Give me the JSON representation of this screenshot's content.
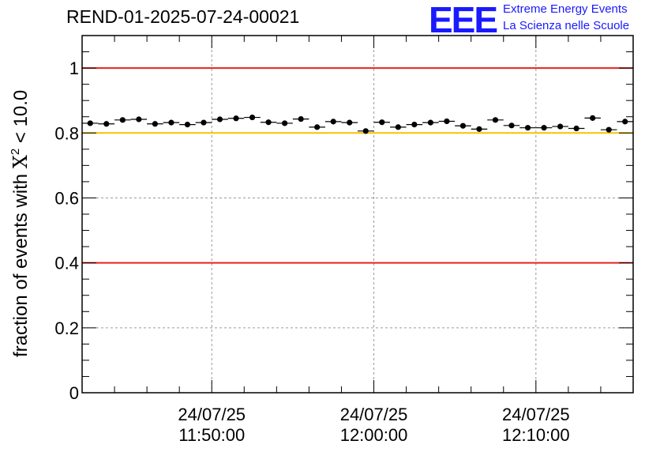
{
  "header": {
    "run_title": "REND-01-2025-07-24-00021",
    "logo_mark": "EEE",
    "logo_line1": "Extreme Energy Events",
    "logo_line2": "La Scienza nelle Scuole"
  },
  "colors": {
    "limit_line": "#e8231c",
    "reference_line": "#f5c400",
    "logo": "#1a1aff",
    "markers": "#000000"
  },
  "chart_data": {
    "type": "scatter",
    "title": "REND-01-2025-07-24-00021",
    "xlabel": "",
    "ylabel_prefix": "fraction of events with ",
    "ylabel_symbol": "X",
    "ylabel_sup": "2",
    "ylabel_suffix": " < 10.0",
    "x_unit": "minutes since 11:42:00",
    "xlim": [
      0,
      34
    ],
    "ylim": [
      0,
      1.1
    ],
    "y_ticks": [
      0,
      0.2,
      0.4,
      0.6,
      0.8,
      1
    ],
    "y_tick_labels": [
      "0",
      "0.2",
      "0.4",
      "0.6",
      "0.8",
      "1"
    ],
    "x_major_ticks": [
      {
        "x": 8,
        "date": "24/07/25",
        "time": "11:50:00"
      },
      {
        "x": 18,
        "date": "24/07/25",
        "time": "12:00:00"
      },
      {
        "x": 28,
        "date": "24/07/25",
        "time": "12:10:00"
      }
    ],
    "horizontal_lines": [
      {
        "y": 1.0,
        "color": "#e8231c"
      },
      {
        "y": 0.4,
        "color": "#e8231c"
      },
      {
        "y": 0.8,
        "color": "#f5c400"
      }
    ],
    "grid": true,
    "x": [
      0.5,
      1.5,
      2.5,
      3.5,
      4.5,
      5.5,
      6.5,
      7.5,
      8.5,
      9.5,
      10.5,
      11.5,
      12.5,
      13.5,
      14.5,
      15.5,
      16.5,
      17.5,
      18.5,
      19.5,
      20.5,
      21.5,
      22.5,
      23.5,
      24.5,
      25.5,
      26.5,
      27.5,
      28.5,
      29.5,
      30.5,
      31.5,
      32.5,
      33.5
    ],
    "y": [
      0.83,
      0.828,
      0.84,
      0.842,
      0.828,
      0.832,
      0.826,
      0.832,
      0.842,
      0.845,
      0.848,
      0.833,
      0.83,
      0.843,
      0.818,
      0.835,
      0.832,
      0.806,
      0.833,
      0.818,
      0.826,
      0.832,
      0.836,
      0.822,
      0.812,
      0.84,
      0.823,
      0.816,
      0.816,
      0.82,
      0.814,
      0.846,
      0.81,
      0.835
    ],
    "y_err": [
      0.006,
      0.006,
      0.006,
      0.006,
      0.006,
      0.006,
      0.006,
      0.006,
      0.006,
      0.006,
      0.006,
      0.006,
      0.006,
      0.006,
      0.006,
      0.006,
      0.006,
      0.006,
      0.006,
      0.006,
      0.006,
      0.006,
      0.006,
      0.006,
      0.006,
      0.006,
      0.006,
      0.006,
      0.006,
      0.006,
      0.006,
      0.006,
      0.006,
      0.006
    ],
    "x_err": 0.5
  }
}
